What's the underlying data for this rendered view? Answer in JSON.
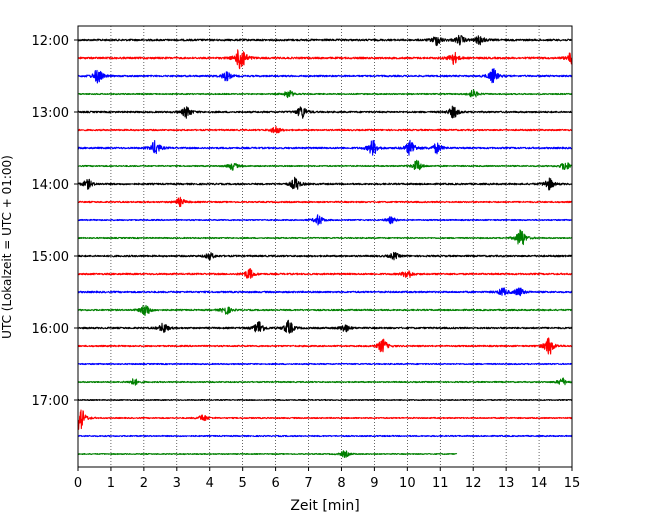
{
  "chart_data": {
    "type": "line",
    "title": "",
    "xlabel": "Zeit  [min]",
    "ylabel": "UTC (Lokalzeit = UTC + 01:00)",
    "xlim": [
      0,
      15
    ],
    "x_ticks": [
      "0",
      "1",
      "2",
      "3",
      "4",
      "5",
      "6",
      "7",
      "8",
      "9",
      "10",
      "11",
      "12",
      "13",
      "14",
      "15"
    ],
    "y_ticks": [
      "12:00",
      "13:00",
      "14:00",
      "15:00",
      "16:00",
      "17:00"
    ],
    "grid": "vertical dotted",
    "color_cycle": [
      "#000000",
      "#ff0000",
      "#0000ff",
      "#008000"
    ],
    "traces": [
      {
        "start": "12:00",
        "end_min": 15,
        "noise": 0.9,
        "events": [
          [
            10.9,
            1.6
          ],
          [
            11.6,
            1.4
          ],
          [
            12.2,
            1.4
          ]
        ]
      },
      {
        "start": "12:15",
        "end_min": 15,
        "noise": 0.9,
        "events": [
          [
            4.95,
            4.5
          ],
          [
            11.4,
            1.9
          ],
          [
            15.0,
            2.0
          ]
        ]
      },
      {
        "start": "12:30",
        "end_min": 15,
        "noise": 0.8,
        "events": [
          [
            0.6,
            2.2
          ],
          [
            4.5,
            1.4
          ],
          [
            12.6,
            2.2
          ]
        ]
      },
      {
        "start": "12:45",
        "end_min": 15,
        "noise": 0.6,
        "events": [
          [
            6.4,
            1.2
          ],
          [
            12.0,
            1.2
          ]
        ]
      },
      {
        "start": "13:00",
        "end_min": 15,
        "noise": 0.8,
        "events": [
          [
            3.3,
            1.8
          ],
          [
            6.8,
            2.0
          ],
          [
            11.4,
            1.8
          ]
        ]
      },
      {
        "start": "13:15",
        "end_min": 15,
        "noise": 0.7,
        "events": [
          [
            6.0,
            1.2
          ]
        ]
      },
      {
        "start": "13:30",
        "end_min": 15,
        "noise": 0.8,
        "events": [
          [
            2.35,
            2.2
          ],
          [
            8.95,
            2.4
          ],
          [
            10.1,
            2.5
          ],
          [
            10.9,
            1.6
          ]
        ]
      },
      {
        "start": "13:45",
        "end_min": 15,
        "noise": 0.6,
        "events": [
          [
            4.7,
            1.2
          ],
          [
            10.3,
            1.8
          ],
          [
            14.8,
            1.4
          ]
        ]
      },
      {
        "start": "14:00",
        "end_min": 15,
        "noise": 0.8,
        "events": [
          [
            0.3,
            1.4
          ],
          [
            6.6,
            2.0
          ],
          [
            14.3,
            1.8
          ]
        ]
      },
      {
        "start": "14:15",
        "end_min": 15,
        "noise": 0.7,
        "events": [
          [
            3.1,
            1.3
          ]
        ]
      },
      {
        "start": "14:30",
        "end_min": 15,
        "noise": 0.6,
        "events": [
          [
            7.3,
            1.6
          ],
          [
            9.5,
            1.0
          ]
        ]
      },
      {
        "start": "14:45",
        "end_min": 15,
        "noise": 0.6,
        "events": [
          [
            13.45,
            3.0
          ]
        ]
      },
      {
        "start": "15:00",
        "end_min": 15,
        "noise": 0.8,
        "events": [
          [
            4.0,
            1.0
          ],
          [
            9.6,
            1.0
          ]
        ]
      },
      {
        "start": "15:15",
        "end_min": 15,
        "noise": 0.8,
        "events": [
          [
            5.2,
            1.6
          ],
          [
            10.0,
            1.4
          ]
        ]
      },
      {
        "start": "15:30",
        "end_min": 15,
        "noise": 0.8,
        "events": [
          [
            12.9,
            1.2
          ],
          [
            13.4,
            1.3
          ]
        ]
      },
      {
        "start": "15:45",
        "end_min": 15,
        "noise": 0.7,
        "events": [
          [
            2.05,
            2.0
          ],
          [
            4.5,
            1.3
          ]
        ]
      },
      {
        "start": "16:00",
        "end_min": 15,
        "noise": 0.8,
        "events": [
          [
            2.6,
            1.5
          ],
          [
            5.5,
            2.2
          ],
          [
            6.4,
            2.2
          ],
          [
            8.1,
            1.2
          ]
        ]
      },
      {
        "start": "16:15",
        "end_min": 15,
        "noise": 0.7,
        "events": [
          [
            9.25,
            2.2
          ],
          [
            14.3,
            2.8
          ]
        ]
      },
      {
        "start": "16:30",
        "end_min": 15,
        "noise": 0.6,
        "events": []
      },
      {
        "start": "16:45",
        "end_min": 15,
        "noise": 0.6,
        "events": [
          [
            1.7,
            1.0
          ],
          [
            14.7,
            1.2
          ]
        ]
      },
      {
        "start": "17:00",
        "end_min": 15,
        "noise": 0.5,
        "events": []
      },
      {
        "start": "17:15",
        "end_min": 15,
        "noise": 0.6,
        "events": [
          [
            0.05,
            4.5
          ],
          [
            3.8,
            1.0
          ]
        ]
      },
      {
        "start": "17:30",
        "end_min": 15,
        "noise": 0.6,
        "events": []
      },
      {
        "start": "17:45",
        "end_min": 11.5,
        "noise": 0.5,
        "events": [
          [
            8.1,
            1.0
          ]
        ]
      }
    ]
  }
}
